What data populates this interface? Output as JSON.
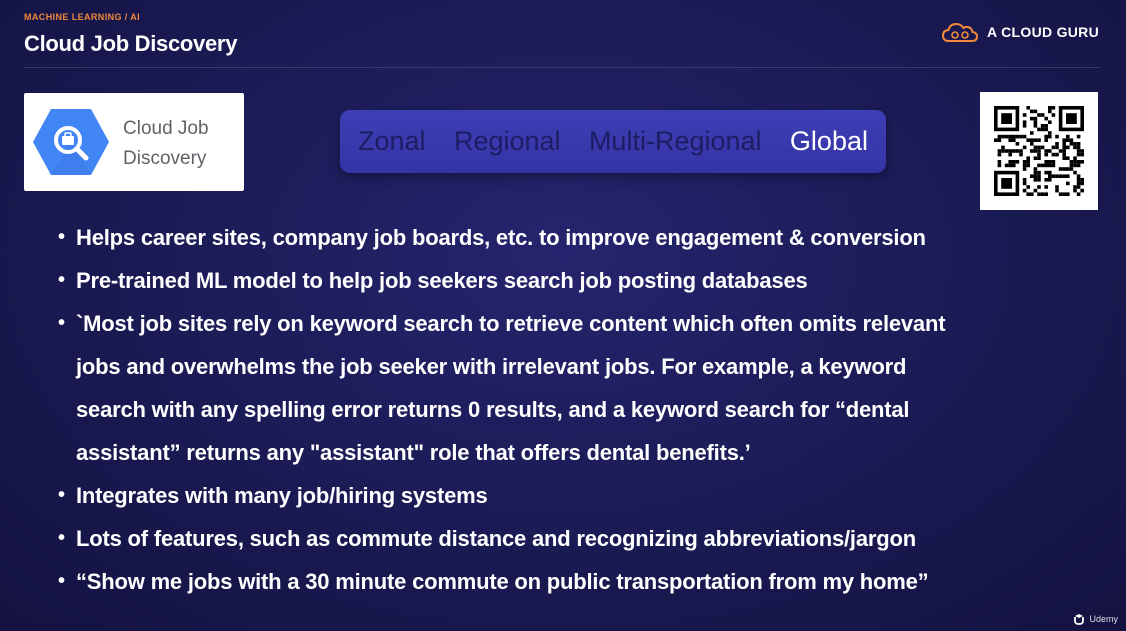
{
  "header": {
    "category": "MACHINE LEARNING / AI",
    "title": "Cloud Job Discovery",
    "brand": "A CLOUD GURU",
    "brand_icon": "cloud-logo-icon",
    "accent_color": "#f0893a"
  },
  "product": {
    "name_line1": "Cloud Job",
    "name_line2": "Discovery",
    "icon": "briefcase-search-icon",
    "icon_color": "#4285f4"
  },
  "scope": {
    "items": [
      "Zonal",
      "Regional",
      "Multi-Regional",
      "Global"
    ],
    "active": "Global"
  },
  "bullets": [
    {
      "lines": [
        "Helps career sites, company job boards, etc. to improve engagement & conversion"
      ]
    },
    {
      "lines": [
        "Pre-trained ML model to help job seekers search job posting databases"
      ]
    },
    {
      "lines": [
        "`Most job sites rely on keyword search to retrieve content which often omits relevant",
        "jobs and overwhelms the job seeker with irrelevant jobs. For example, a keyword",
        "search with any spelling error returns 0 results, and a keyword search for “dental",
        "assistant” returns any \"assistant\" role that offers dental benefits.’"
      ]
    },
    {
      "lines": [
        "Integrates with many job/hiring systems"
      ]
    },
    {
      "lines": [
        "Lots of features, such as commute distance and recognizing abbreviations/jargon"
      ]
    },
    {
      "lines": [
        "“Show me jobs with a 30 minute commute on public transportation from my home”"
      ]
    }
  ],
  "footer": {
    "watermark": "Udemy",
    "watermark_icon": "udemy-logo-icon"
  }
}
